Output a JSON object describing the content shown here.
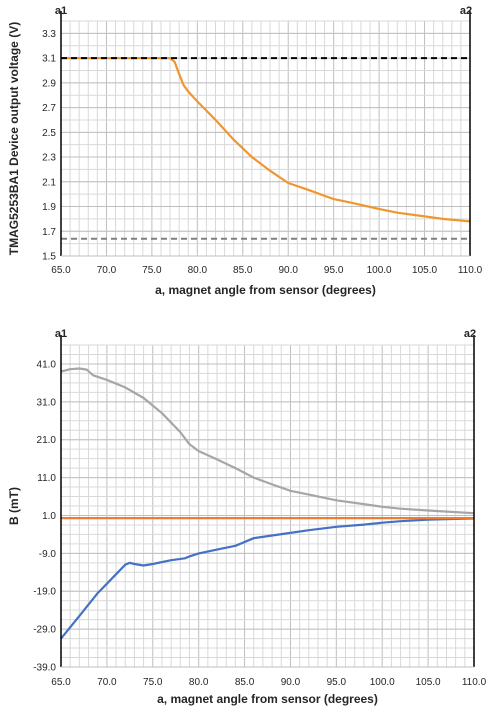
{
  "chart_data": [
    {
      "type": "line",
      "corner_left": "a1",
      "corner_right": "a2",
      "xlabel": "a, magnet angle from sensor (degrees)",
      "ylabel": "TMAG5253BA1 Device output voltage (V)",
      "xlim": [
        65.0,
        110.0
      ],
      "ylim": [
        1.5,
        3.4
      ],
      "xticks": [
        "65.0",
        "70.0",
        "75.0",
        "80.0",
        "85.0",
        "90.0",
        "95.0",
        "100.0",
        "105.0",
        "110.0"
      ],
      "yticks": [
        "1.5",
        "1.7",
        "1.9",
        "2.1",
        "2.3",
        "2.5",
        "2.7",
        "2.9",
        "3.1",
        "3.3"
      ],
      "grid": true,
      "series": [
        {
          "color": "#f0962f",
          "style": "solid",
          "points": [
            [
              65.0,
              3.1
            ],
            [
              70.0,
              3.1
            ],
            [
              75.0,
              3.1
            ],
            [
              77.0,
              3.1
            ],
            [
              77.5,
              3.07
            ],
            [
              78.0,
              2.97
            ],
            [
              78.5,
              2.88
            ],
            [
              79.0,
              2.83
            ],
            [
              80.0,
              2.75
            ],
            [
              82.0,
              2.6
            ],
            [
              84.0,
              2.44
            ],
            [
              86.0,
              2.3
            ],
            [
              88.0,
              2.19
            ],
            [
              90.0,
              2.09
            ],
            [
              92.0,
              2.04
            ],
            [
              95.0,
              1.96
            ],
            [
              97.0,
              1.93
            ],
            [
              100.0,
              1.88
            ],
            [
              102.0,
              1.85
            ],
            [
              105.0,
              1.82
            ],
            [
              107.0,
              1.8
            ],
            [
              110.0,
              1.78
            ]
          ]
        },
        {
          "color": "#000000",
          "style": "dashed",
          "points": [
            [
              65.0,
              3.1
            ],
            [
              110.0,
              3.1
            ]
          ]
        },
        {
          "color": "#808080",
          "style": "dashed",
          "points": [
            [
              65.0,
              1.64
            ],
            [
              110.0,
              1.64
            ]
          ]
        }
      ]
    },
    {
      "type": "line",
      "corner_left": "a1",
      "corner_right": "a2",
      "xlabel": "a, magnet angle from sensor (degrees)",
      "ylabel": "B (mT)",
      "xlim": [
        65.0,
        110.0
      ],
      "ylim": [
        -39.0,
        46.0
      ],
      "xticks": [
        "65.0",
        "70.0",
        "75.0",
        "80.0",
        "85.0",
        "90.0",
        "95.0",
        "100.0",
        "105.0",
        "110.0"
      ],
      "yticks": [
        "-39.0",
        "-29.0",
        "-19.0",
        "-9.0",
        "1.0",
        "11.0",
        "21.0",
        "31.0",
        "41.0"
      ],
      "grid": true,
      "series": [
        {
          "color": "#a6a6a6",
          "style": "solid",
          "points": [
            [
              65.0,
              39.0
            ],
            [
              66.0,
              39.6
            ],
            [
              67.0,
              39.8
            ],
            [
              67.8,
              39.5
            ],
            [
              68.5,
              38.0
            ],
            [
              70.0,
              36.8
            ],
            [
              72.0,
              34.8
            ],
            [
              74.0,
              32.0
            ],
            [
              76.0,
              28.0
            ],
            [
              78.0,
              23.0
            ],
            [
              79.0,
              19.8
            ],
            [
              80.0,
              18.0
            ],
            [
              82.0,
              15.8
            ],
            [
              84.0,
              13.5
            ],
            [
              86.0,
              11.0
            ],
            [
              88.0,
              9.2
            ],
            [
              90.0,
              7.5
            ],
            [
              92.0,
              6.5
            ],
            [
              95.0,
              5.0
            ],
            [
              98.0,
              4.0
            ],
            [
              100.0,
              3.3
            ],
            [
              102.0,
              2.8
            ],
            [
              105.0,
              2.3
            ],
            [
              108.0,
              1.9
            ],
            [
              110.0,
              1.6
            ]
          ]
        },
        {
          "color": "#4472c4",
          "style": "solid",
          "points": [
            [
              65.0,
              -31.5
            ],
            [
              67.0,
              -25.5
            ],
            [
              69.0,
              -19.5
            ],
            [
              70.0,
              -17.0
            ],
            [
              71.0,
              -14.5
            ],
            [
              72.0,
              -12.0
            ],
            [
              72.5,
              -11.5
            ],
            [
              73.0,
              -11.8
            ],
            [
              74.0,
              -12.2
            ],
            [
              75.0,
              -11.8
            ],
            [
              77.0,
              -10.8
            ],
            [
              78.5,
              -10.3
            ],
            [
              79.0,
              -9.8
            ],
            [
              80.0,
              -9.0
            ],
            [
              82.0,
              -8.0
            ],
            [
              84.0,
              -7.0
            ],
            [
              86.0,
              -5.0
            ],
            [
              88.0,
              -4.3
            ],
            [
              90.0,
              -3.6
            ],
            [
              92.0,
              -2.9
            ],
            [
              95.0,
              -2.0
            ],
            [
              98.0,
              -1.4
            ],
            [
              100.0,
              -0.9
            ],
            [
              102.0,
              -0.5
            ],
            [
              105.0,
              -0.1
            ],
            [
              108.0,
              0.1
            ],
            [
              110.0,
              0.2
            ]
          ]
        },
        {
          "color": "#ed7d31",
          "style": "solid",
          "points": [
            [
              65.0,
              0.3
            ],
            [
              110.0,
              0.3
            ]
          ]
        }
      ]
    }
  ]
}
